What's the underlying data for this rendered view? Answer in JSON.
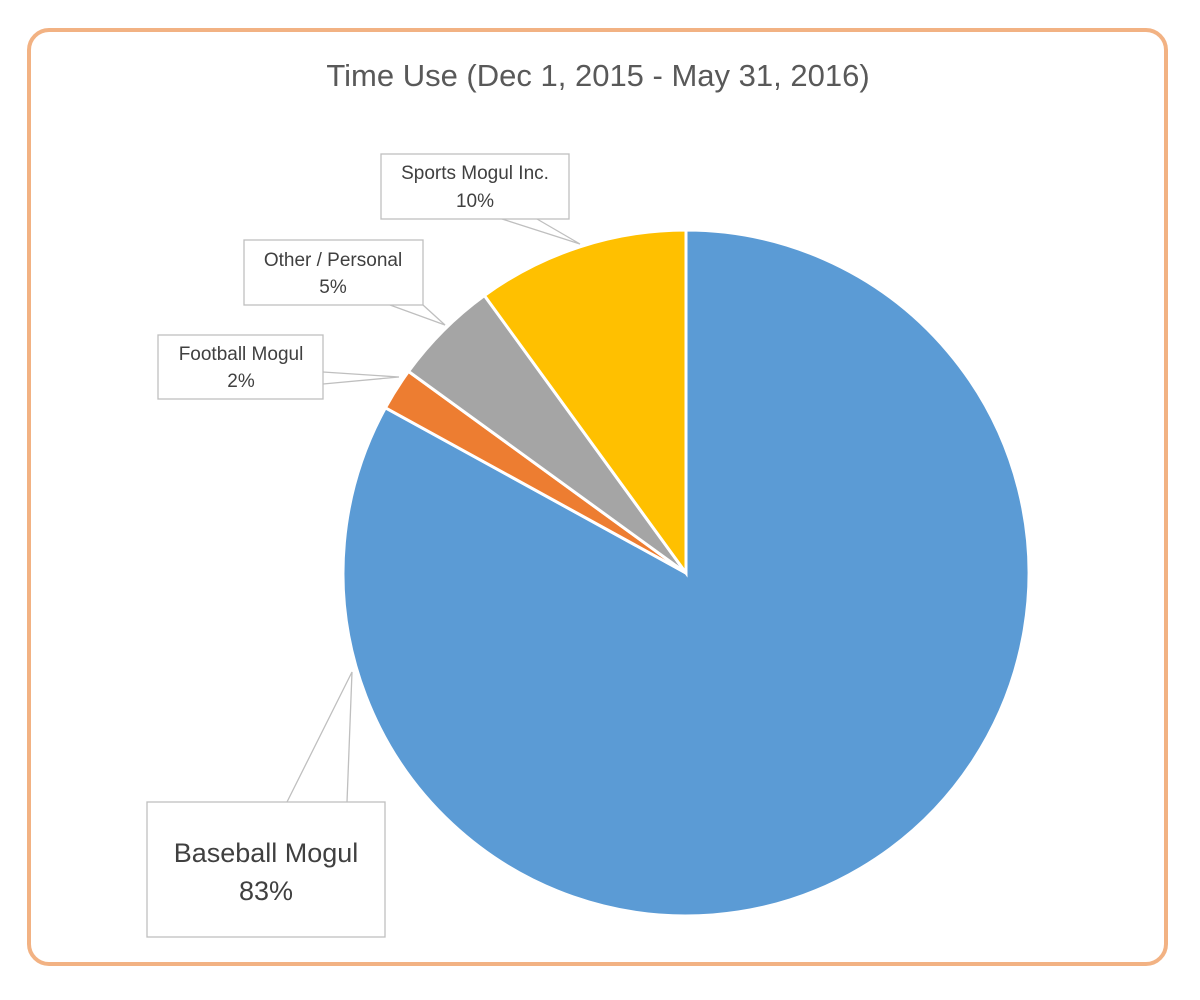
{
  "chart_data": {
    "type": "pie",
    "title": "Time Use (Dec 1, 2015 - May 31, 2016)",
    "start_angle_deg": 0,
    "direction": "clockwise",
    "slices": [
      {
        "name": "Baseball Mogul",
        "value": 83,
        "label": "83%",
        "color": "#5B9BD5"
      },
      {
        "name": "Football Mogul",
        "value": 2,
        "label": "2%",
        "color": "#ED7D31"
      },
      {
        "name": "Other / Personal",
        "value": 5,
        "label": "5%",
        "color": "#A5A5A5"
      },
      {
        "name": "Sports Mogul Inc.",
        "value": 10,
        "label": "10%",
        "color": "#FFC000"
      }
    ],
    "legend": "none",
    "data_labels": "callouts with name and percent"
  },
  "frame": {
    "border_color": "#F2B283"
  }
}
